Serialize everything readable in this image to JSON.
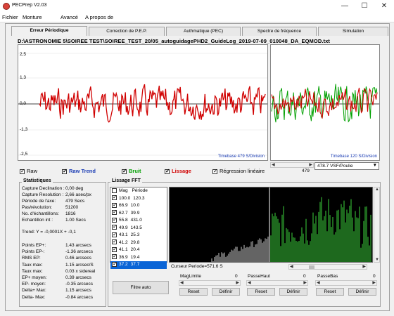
{
  "window": {
    "title": "PECPrep V2.03",
    "minimize_glyph": "—",
    "maximize_glyph": "☐",
    "close_glyph": "✕"
  },
  "menu": [
    "Fichier",
    "Monture",
    "Avancé",
    "A propos de"
  ],
  "tabs": [
    {
      "label": "Erreur Périodique",
      "active": true
    },
    {
      "label": "Correction de P.E.P.",
      "active": false
    },
    {
      "label": "Authmatique (PEC)",
      "active": false
    },
    {
      "label": "Spectre de fréquence",
      "active": false
    },
    {
      "label": "Simulation",
      "active": false
    }
  ],
  "file_path": "D:\\ASTRONOMIE 5\\SOIREE TEST\\SOIREE_TEST_20/05_autoguidagePHD2_GuideLog_2019-07-09_010048_DA_EQMOD.txt",
  "plot": {
    "y_labels": [
      "2,5",
      "1,3",
      "0,0",
      "-1,3",
      "-2,5"
    ],
    "left_timebase": "Timebase 479 S/Division",
    "right_timebase": "Timebase 120 S/Division",
    "colors": {
      "trend": "#d00000",
      "noise": "#00a000",
      "zero_line": "#000000"
    },
    "icon_left_bottom": "arcs-label"
  },
  "legend": {
    "raw": {
      "label": "Raw",
      "checked": true,
      "color": "#000000"
    },
    "raw_trend": {
      "label": "Raw Trend",
      "checked": true,
      "color": "#1a3cb4"
    },
    "bruit": {
      "label": "Bruit",
      "checked": true,
      "color": "#00a000"
    },
    "lissage": {
      "label": "Lissage",
      "checked": true,
      "color": "#d00000"
    },
    "regression": {
      "label": "Régression linéaire",
      "checked": true,
      "color": "#000000"
    }
  },
  "controls": {
    "step_value": "479",
    "combo_value": "478.7 VSF/Poulie"
  },
  "stats": {
    "title": "Statistiques",
    "rows": [
      {
        "label": "Capture Declination :",
        "value": "0,00 deg"
      },
      {
        "label": "Capture Resolution :",
        "value": "2,66 asec/px"
      },
      {
        "label": "Période de l'axe:",
        "value": "479 Secs"
      },
      {
        "label": "Pas/révolution:",
        "value": "51200"
      },
      {
        "label": "No. d'échantillons:",
        "value": "1816"
      },
      {
        "label": "Echantillon int :",
        "value": "1.00 Secs"
      }
    ],
    "trend": "Trend: Y = -0,0001X + -0,1",
    "rows2": [
      {
        "label": "Points EP+:",
        "value": "1.43 arcsecs"
      },
      {
        "label": "Points EP-:",
        "value": "-1.36 arcsecs"
      },
      {
        "label": "RMS EP:",
        "value": "0.46 arcsecs"
      },
      {
        "label": "Taux max:",
        "value": "1.15 arcsec/S"
      },
      {
        "label": "Taux max:",
        "value": "0.03 x sidereal"
      },
      {
        "label": "EP+ moyen:",
        "value": "0.39 arcsecs"
      },
      {
        "label": "EP- moyen:",
        "value": "-0.35 arcsecs"
      },
      {
        "label": "Delta+ Max:",
        "value": "1.15 arcsecs"
      },
      {
        "label": "Delta- Max:",
        "value": "-0.84 arcsecs"
      }
    ]
  },
  "fft": {
    "title": "Lissage FFT",
    "header": {
      "mag": "Mag",
      "periode": "Période"
    },
    "rows": [
      {
        "mag": "100.0",
        "period": "120.3",
        "checked": true,
        "selected": false
      },
      {
        "mag": "66.9",
        "period": "10.0",
        "checked": true,
        "selected": false
      },
      {
        "mag": "62.7",
        "period": "39.9",
        "checked": true,
        "selected": false
      },
      {
        "mag": "55.8",
        "period": "431.0",
        "checked": true,
        "selected": false
      },
      {
        "mag": "49.9",
        "period": "143.5",
        "checked": true,
        "selected": false
      },
      {
        "mag": "43.1",
        "period": "25.3",
        "checked": true,
        "selected": false
      },
      {
        "mag": "41.2",
        "period": "29.8",
        "checked": true,
        "selected": false
      },
      {
        "mag": "41.1",
        "period": "20.4",
        "checked": true,
        "selected": false
      },
      {
        "mag": "36.9",
        "period": "19.4",
        "checked": true,
        "selected": false
      },
      {
        "mag": "37.2",
        "period": "37.7",
        "checked": true,
        "selected": true
      }
    ],
    "cursor": "Curseur Periode=571.6 S",
    "filter_button": "Filtre auto",
    "magnitude_label": "MagLimite",
    "magnitude_value": "0",
    "passhaut_label": "PasseHaut",
    "passhaut_value": "0",
    "passbas_label": "PasseBas",
    "passbas_value": "0",
    "reset": "Reset",
    "definir": "Définir"
  }
}
